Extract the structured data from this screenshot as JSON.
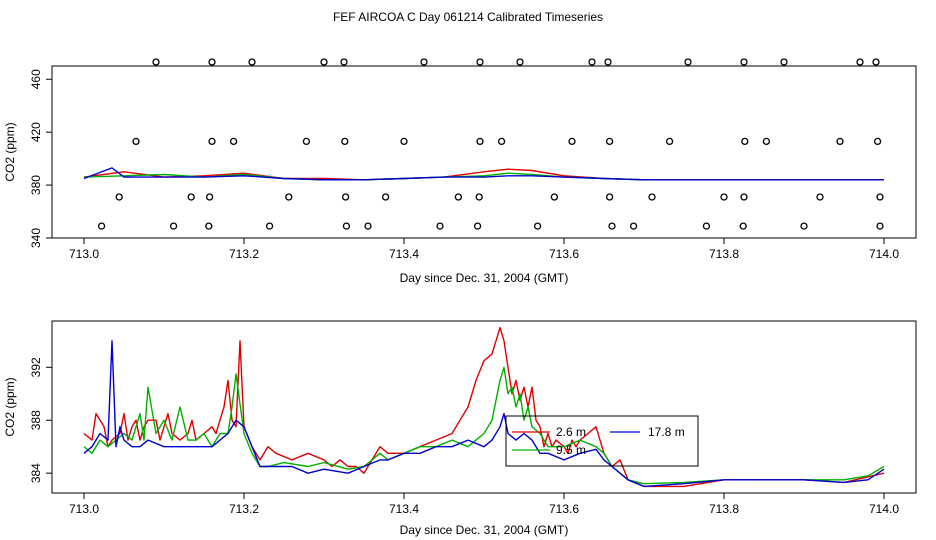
{
  "figure": {
    "title": "FEF AIRCOA C  Day 061214  Calibrated Timeseries"
  },
  "colors": {
    "s2_6": "#e00000",
    "s9_5": "#00b000",
    "s17_8": "#0000d0",
    "axis": "#000000"
  },
  "chart_data": [
    {
      "type": "scatter+line",
      "title": "",
      "xlabel": "Day since Dec. 31, 2004 (GMT)",
      "ylabel": "CO2 (ppm)",
      "xlim": [
        713.0,
        714.0
      ],
      "ylim": [
        340,
        470
      ],
      "x_ticks": [
        713.0,
        713.2,
        713.4,
        713.6,
        713.8,
        714.0
      ],
      "x_tick_labels": [
        "713.0",
        "713.2",
        "713.4",
        "713.6",
        "713.8",
        "714.0"
      ],
      "y_ticks": [
        340,
        380,
        420,
        460
      ],
      "y_tick_labels": [
        "340",
        "380",
        "420",
        "460"
      ],
      "calibration_points": [
        {
          "x": 713.09,
          "y": 473
        },
        {
          "x": 713.16,
          "y": 473
        },
        {
          "x": 713.21,
          "y": 473
        },
        {
          "x": 713.3,
          "y": 473
        },
        {
          "x": 713.325,
          "y": 473
        },
        {
          "x": 713.425,
          "y": 473
        },
        {
          "x": 713.495,
          "y": 473
        },
        {
          "x": 713.545,
          "y": 473
        },
        {
          "x": 713.635,
          "y": 473
        },
        {
          "x": 713.655,
          "y": 473
        },
        {
          "x": 713.755,
          "y": 473
        },
        {
          "x": 713.825,
          "y": 473
        },
        {
          "x": 713.875,
          "y": 473
        },
        {
          "x": 713.97,
          "y": 473
        },
        {
          "x": 713.99,
          "y": 473
        },
        {
          "x": 713.065,
          "y": 413
        },
        {
          "x": 713.16,
          "y": 413
        },
        {
          "x": 713.187,
          "y": 413
        },
        {
          "x": 713.278,
          "y": 413
        },
        {
          "x": 713.326,
          "y": 413
        },
        {
          "x": 713.4,
          "y": 413
        },
        {
          "x": 713.495,
          "y": 413
        },
        {
          "x": 713.522,
          "y": 413
        },
        {
          "x": 713.61,
          "y": 413
        },
        {
          "x": 713.657,
          "y": 413
        },
        {
          "x": 713.732,
          "y": 413
        },
        {
          "x": 713.826,
          "y": 413
        },
        {
          "x": 713.853,
          "y": 413
        },
        {
          "x": 713.945,
          "y": 413
        },
        {
          "x": 713.992,
          "y": 413
        },
        {
          "x": 713.044,
          "y": 371
        },
        {
          "x": 713.134,
          "y": 371
        },
        {
          "x": 713.157,
          "y": 371
        },
        {
          "x": 713.256,
          "y": 371
        },
        {
          "x": 713.327,
          "y": 371
        },
        {
          "x": 713.377,
          "y": 371
        },
        {
          "x": 713.468,
          "y": 371
        },
        {
          "x": 713.494,
          "y": 371
        },
        {
          "x": 713.588,
          "y": 371
        },
        {
          "x": 713.657,
          "y": 371
        },
        {
          "x": 713.71,
          "y": 371
        },
        {
          "x": 713.8,
          "y": 371
        },
        {
          "x": 713.825,
          "y": 371
        },
        {
          "x": 713.92,
          "y": 371
        },
        {
          "x": 713.995,
          "y": 371
        },
        {
          "x": 713.022,
          "y": 349
        },
        {
          "x": 713.112,
          "y": 349
        },
        {
          "x": 713.156,
          "y": 349
        },
        {
          "x": 713.232,
          "y": 349
        },
        {
          "x": 713.328,
          "y": 349
        },
        {
          "x": 713.355,
          "y": 349
        },
        {
          "x": 713.445,
          "y": 349
        },
        {
          "x": 713.492,
          "y": 349
        },
        {
          "x": 713.567,
          "y": 349
        },
        {
          "x": 713.66,
          "y": 349
        },
        {
          "x": 713.687,
          "y": 349
        },
        {
          "x": 713.778,
          "y": 349
        },
        {
          "x": 713.824,
          "y": 349
        },
        {
          "x": 713.9,
          "y": 349
        },
        {
          "x": 713.995,
          "y": 349
        }
      ],
      "series": [
        {
          "name": "2.6 m",
          "color": "red",
          "x": [
            713.0,
            713.05,
            713.1,
            713.15,
            713.2,
            713.25,
            713.3,
            713.35,
            713.4,
            713.45,
            713.5,
            713.53,
            713.56,
            713.6,
            713.65,
            713.7,
            713.8,
            713.9,
            714.0
          ],
          "values": [
            386,
            390,
            386,
            387,
            389,
            385,
            385,
            384,
            385,
            386,
            390,
            392,
            391,
            387,
            385,
            384,
            384,
            384,
            384
          ]
        },
        {
          "name": "9.5 m",
          "color": "green",
          "x": [
            713.0,
            713.05,
            713.1,
            713.15,
            713.2,
            713.25,
            713.3,
            713.35,
            713.4,
            713.45,
            713.5,
            713.53,
            713.56,
            713.6,
            713.65,
            713.7,
            713.8,
            713.9,
            714.0
          ],
          "values": [
            386,
            387,
            388,
            386,
            388,
            385,
            384,
            384,
            385,
            386,
            387,
            389,
            388,
            386,
            385,
            384,
            384,
            384,
            384
          ]
        },
        {
          "name": "17.8 m",
          "color": "blue",
          "x": [
            713.0,
            713.035,
            713.05,
            713.1,
            713.15,
            713.2,
            713.25,
            713.3,
            713.35,
            713.4,
            713.45,
            713.5,
            713.53,
            713.56,
            713.6,
            713.65,
            713.7,
            713.8,
            713.9,
            714.0
          ],
          "values": [
            385,
            393,
            386,
            386,
            386,
            387,
            385,
            384,
            384,
            385,
            386,
            386,
            387,
            387,
            386,
            385,
            384,
            384,
            384,
            384
          ]
        }
      ]
    },
    {
      "type": "line",
      "title": "",
      "xlabel": "Day since Dec. 31, 2004 (GMT)",
      "ylabel": "CO2 (ppm)",
      "xlim": [
        713.0,
        714.0
      ],
      "ylim": [
        382.5,
        395.5
      ],
      "x_ticks": [
        713.0,
        713.2,
        713.4,
        713.6,
        713.8,
        714.0
      ],
      "x_tick_labels": [
        "713.0",
        "713.2",
        "713.4",
        "713.6",
        "713.8",
        "714.0"
      ],
      "y_ticks": [
        384,
        388,
        392
      ],
      "y_tick_labels": [
        "384",
        "388",
        "392"
      ],
      "legend": {
        "placement": "center-right",
        "entries": [
          {
            "label": "2.6 m",
            "color": "red"
          },
          {
            "label": "9.5 m",
            "color": "green"
          },
          {
            "label": "17.8 m",
            "color": "blue"
          }
        ]
      },
      "series": [
        {
          "name": "2.6 m",
          "color": "red",
          "x": [
            713.0,
            713.01,
            713.015,
            713.025,
            713.03,
            713.035,
            713.045,
            713.05,
            713.055,
            713.06,
            713.065,
            713.07,
            713.075,
            713.08,
            713.09,
            713.095,
            713.1,
            713.105,
            713.11,
            713.12,
            713.13,
            713.135,
            713.14,
            713.15,
            713.16,
            713.165,
            713.17,
            713.175,
            713.18,
            713.185,
            713.19,
            713.195,
            713.2,
            713.21,
            713.22,
            713.23,
            713.24,
            713.26,
            713.28,
            713.3,
            713.31,
            713.32,
            713.33,
            713.34,
            713.35,
            713.36,
            713.37,
            713.38,
            713.4,
            713.42,
            713.44,
            713.46,
            713.47,
            713.48,
            713.49,
            713.5,
            713.51,
            713.515,
            713.52,
            713.525,
            713.53,
            713.535,
            713.54,
            713.545,
            713.55,
            713.555,
            713.56,
            713.565,
            713.57,
            713.575,
            713.58,
            713.585,
            713.59,
            713.6,
            713.605,
            713.61,
            713.615,
            713.62,
            713.63,
            713.64,
            713.65,
            713.66,
            713.67,
            713.68,
            713.7,
            713.75,
            713.8,
            713.85,
            713.9,
            713.95,
            714.0
          ],
          "values": [
            387,
            386.5,
            388.5,
            387.5,
            386,
            386.5,
            387,
            388.5,
            386.5,
            387.5,
            388,
            386.5,
            387.5,
            388,
            388,
            386.5,
            387.5,
            388.5,
            387,
            386.5,
            387,
            388,
            386.5,
            387,
            387.5,
            387,
            388,
            389,
            391,
            388,
            387.5,
            394,
            387.5,
            386,
            385,
            386,
            385.5,
            385,
            385.5,
            385,
            384.5,
            385,
            384.5,
            384.5,
            384,
            385,
            386,
            385.5,
            385.5,
            386,
            386.5,
            387,
            388,
            389,
            391,
            392.5,
            393,
            394,
            395,
            394,
            392,
            390,
            391,
            389.5,
            390.5,
            389,
            390.5,
            388,
            387.5,
            386,
            387,
            386,
            386.5,
            386,
            385.5,
            386.5,
            386,
            386.5,
            387,
            387.5,
            385.5,
            384.5,
            385,
            383.5,
            383,
            383,
            383.5,
            383.5,
            383.5,
            383.3,
            384
          ]
        },
        {
          "name": "9.5 m",
          "color": "green",
          "x": [
            713.0,
            713.01,
            713.02,
            713.03,
            713.04,
            713.05,
            713.06,
            713.07,
            713.075,
            713.08,
            713.09,
            713.1,
            713.11,
            713.12,
            713.13,
            713.14,
            713.15,
            713.16,
            713.17,
            713.18,
            713.185,
            713.19,
            713.2,
            713.21,
            713.22,
            713.23,
            713.25,
            713.28,
            713.3,
            713.33,
            713.35,
            713.37,
            713.38,
            713.4,
            713.42,
            713.44,
            713.46,
            713.48,
            713.5,
            713.51,
            713.515,
            713.52,
            713.525,
            713.53,
            713.535,
            713.54,
            713.545,
            713.55,
            713.555,
            713.56,
            713.57,
            713.58,
            713.6,
            713.62,
            713.64,
            713.65,
            713.66,
            713.68,
            713.7,
            713.75,
            713.8,
            713.85,
            713.9,
            713.95,
            713.98,
            714.0
          ],
          "values": [
            386,
            385.5,
            386.5,
            386,
            386.5,
            387,
            386.5,
            388.5,
            386.5,
            390.5,
            387,
            388,
            386.5,
            389,
            386.5,
            386.5,
            387,
            386,
            387,
            387,
            389,
            391.5,
            387,
            385.5,
            384.5,
            384.5,
            384.8,
            384.5,
            384.8,
            384.3,
            384.5,
            385.5,
            385,
            385.5,
            386,
            386,
            386.5,
            386,
            387,
            388,
            389.5,
            391,
            392,
            390,
            390.5,
            389,
            390,
            388,
            389,
            387.5,
            387,
            386,
            386,
            386.5,
            386,
            385.5,
            384.5,
            383.5,
            383.2,
            383.3,
            383.5,
            383.5,
            383.5,
            383.5,
            383.8,
            384.5
          ]
        },
        {
          "name": "17.8 m",
          "color": "blue",
          "x": [
            713.0,
            713.01,
            713.02,
            713.03,
            713.035,
            713.04,
            713.045,
            713.05,
            713.06,
            713.07,
            713.08,
            713.1,
            713.12,
            713.14,
            713.16,
            713.18,
            713.19,
            713.2,
            713.21,
            713.22,
            713.24,
            713.26,
            713.28,
            713.3,
            713.33,
            713.35,
            713.37,
            713.38,
            713.4,
            713.42,
            713.44,
            713.46,
            713.48,
            713.5,
            713.51,
            713.52,
            713.525,
            713.53,
            713.54,
            713.55,
            713.56,
            713.57,
            713.58,
            713.6,
            713.62,
            713.64,
            713.65,
            713.66,
            713.68,
            713.7,
            713.75,
            713.8,
            713.85,
            713.9,
            713.95,
            713.98,
            714.0
          ],
          "values": [
            385.5,
            386,
            387,
            386.5,
            394,
            386,
            387.5,
            386.5,
            386,
            386,
            386.5,
            386,
            386,
            386,
            386,
            387,
            388,
            387.5,
            386,
            384.5,
            384.5,
            384.5,
            384,
            384.3,
            384,
            384.5,
            385,
            385,
            385.5,
            385.5,
            386,
            386,
            386.5,
            386,
            386.5,
            387.5,
            388.5,
            387,
            386.5,
            387,
            386.5,
            385.5,
            385.5,
            385,
            385.5,
            385.8,
            385,
            384.5,
            383.5,
            383,
            383.2,
            383.5,
            383.5,
            383.5,
            383.3,
            383.5,
            384.3
          ]
        }
      ]
    }
  ]
}
